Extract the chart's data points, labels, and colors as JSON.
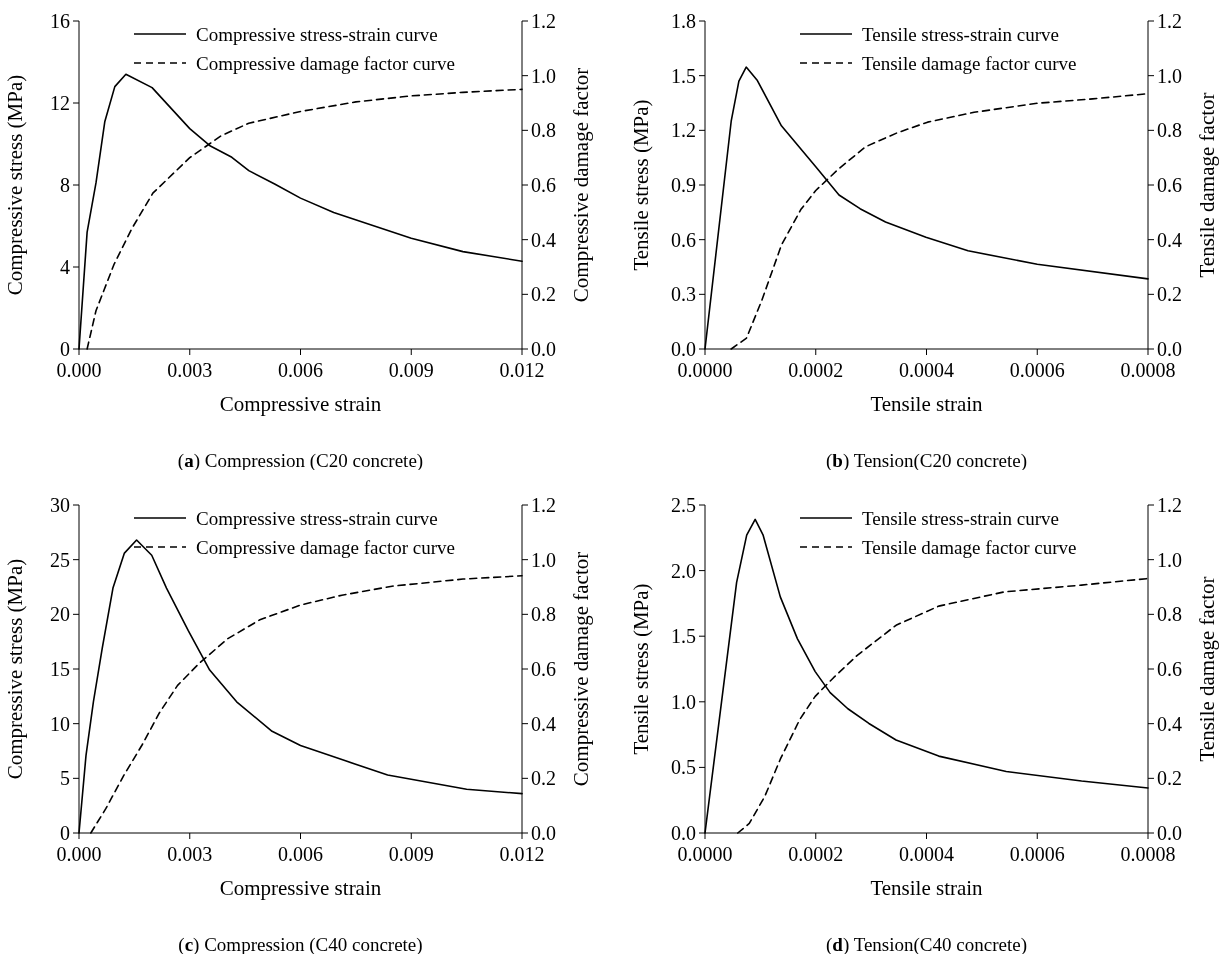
{
  "chart_data": [
    {
      "type": "line",
      "title": "(a) Compression (C20 concrete)",
      "xlabel": "Compressive strain",
      "ylabel": "Compressive stress (MPa)",
      "y2label": "Compressive damage factor",
      "legend": "top right",
      "xlim": [
        0,
        0.012
      ],
      "xticks": [
        {
          "value": 0,
          "label": "0.000"
        },
        {
          "value": 0.003,
          "label": "0.003"
        },
        {
          "value": 0.006,
          "label": "0.006"
        },
        {
          "value": 0.009,
          "label": "0.009"
        },
        {
          "value": 0.012,
          "label": "0.012"
        }
      ],
      "ylim": [
        0,
        16
      ],
      "yticks": [
        0,
        4,
        8,
        12,
        16
      ],
      "y2lim": [
        0,
        1.2
      ],
      "y2ticks": [
        {
          "value": 0,
          "label": "0.0"
        },
        {
          "value": 0.2,
          "label": "0.2"
        },
        {
          "value": 0.4,
          "label": "0.4"
        },
        {
          "value": 0.6,
          "label": "0.6"
        },
        {
          "value": 0.8,
          "label": "0.8"
        },
        {
          "value": 1,
          "label": "1.0"
        },
        {
          "value": 1.2,
          "label": "1.2"
        }
      ],
      "series": [
        {
          "name": "Compressive stress-strain curve",
          "color": "#000000",
          "line_style": "solid",
          "x": [
            0,
            0.00022,
            0.00046,
            0.0007,
            0.00097,
            0.00127,
            0.00198,
            0.003,
            0.00356,
            0.00414,
            0.0046,
            0.0053,
            0.006,
            0.0069,
            0.008,
            0.009,
            0.0104,
            0.012
          ],
          "values": [
            0,
            5.7,
            8.1,
            11.1,
            12.8,
            13.4,
            12.75,
            10.75,
            9.9,
            9.35,
            8.7,
            8.05,
            7.36,
            6.66,
            6.0,
            5.4,
            4.75,
            4.28
          ]
        },
        {
          "name": "Compressive damage factor curve",
          "color": "#000000",
          "line_style": "dashed",
          "axis": "y2",
          "x": [
            0.00022,
            0.00046,
            0.00095,
            0.00143,
            0.002,
            0.003,
            0.00385,
            0.0046,
            0.006,
            0.0075,
            0.009,
            0.0104,
            0.012
          ],
          "values": [
            0,
            0.14,
            0.31,
            0.44,
            0.57,
            0.7,
            0.78,
            0.826,
            0.869,
            0.904,
            0.926,
            0.939,
            0.95
          ]
        }
      ]
    },
    {
      "type": "line",
      "title": "(b) Tension(C20 concrete)",
      "xlabel": "Tensile strain",
      "ylabel": "Tensile stress (MPa)",
      "y2label": "Tensile damage factor",
      "legend": "top right",
      "xlim": [
        0,
        0.0008
      ],
      "xticks": [
        {
          "value": 0,
          "label": "0.0000"
        },
        {
          "value": 0.0002,
          "label": "0.0002"
        },
        {
          "value": 0.0004,
          "label": "0.0004"
        },
        {
          "value": 0.0006,
          "label": "0.0006"
        },
        {
          "value": 0.0008,
          "label": "0.0008"
        }
      ],
      "ylim": [
        0,
        1.8
      ],
      "yticks": [
        {
          "value": 0,
          "label": "0.0"
        },
        {
          "value": 0.3,
          "label": "0.3"
        },
        {
          "value": 0.6,
          "label": "0.6"
        },
        {
          "value": 0.9,
          "label": "0.9"
        },
        {
          "value": 1.2,
          "label": "1.2"
        },
        {
          "value": 1.5,
          "label": "1.5"
        },
        {
          "value": 1.8,
          "label": "1.8"
        }
      ],
      "y2lim": [
        0,
        1.2
      ],
      "y2ticks": [
        {
          "value": 0,
          "label": "0.0"
        },
        {
          "value": 0.2,
          "label": "0.2"
        },
        {
          "value": 0.4,
          "label": "0.4"
        },
        {
          "value": 0.6,
          "label": "0.6"
        },
        {
          "value": 0.8,
          "label": "0.8"
        },
        {
          "value": 1,
          "label": "1.0"
        },
        {
          "value": 1.2,
          "label": "1.2"
        }
      ],
      "series": [
        {
          "name": "Tensile stress-strain curve",
          "color": "#000000",
          "line_style": "solid",
          "x": [
            0,
            4.73e-05,
            6.12e-05,
            7.44e-05,
            9.46e-05,
            0.000138,
            0.0002,
            0.000242,
            0.00028,
            0.000326,
            0.000399,
            0.000475,
            0.0006,
            0.0008
          ],
          "values": [
            0,
            1.25,
            1.47,
            1.547,
            1.473,
            1.225,
            1.0,
            0.845,
            0.77,
            0.697,
            0.613,
            0.539,
            0.465,
            0.385
          ]
        },
        {
          "name": "Tensile damage factor curve",
          "color": "#000000",
          "line_style": "dashed",
          "axis": "y2",
          "x": [
            4.73e-05,
            7.5e-05,
            0.000103,
            0.000138,
            0.000173,
            0.0002,
            0.000242,
            0.00029,
            0.000346,
            0.000402,
            0.000486,
            0.0006,
            0.0007,
            0.0008
          ],
          "values": [
            0,
            0.04,
            0.18,
            0.38,
            0.51,
            0.58,
            0.66,
            0.74,
            0.79,
            0.83,
            0.866,
            0.899,
            0.915,
            0.934
          ]
        }
      ]
    },
    {
      "type": "line",
      "title": "(c) Compression (C40 concrete)",
      "xlabel": "Compressive strain",
      "ylabel": "Compressive stress (MPa)",
      "y2label": "Compressive damage factor",
      "legend": "top right",
      "xlim": [
        0,
        0.012
      ],
      "xticks": [
        {
          "value": 0,
          "label": "0.000"
        },
        {
          "value": 0.003,
          "label": "0.003"
        },
        {
          "value": 0.006,
          "label": "0.006"
        },
        {
          "value": 0.009,
          "label": "0.009"
        },
        {
          "value": 0.012,
          "label": "0.012"
        }
      ],
      "ylim": [
        0,
        30
      ],
      "yticks": [
        0,
        5,
        10,
        15,
        20,
        25,
        30
      ],
      "y2lim": [
        0,
        1.2
      ],
      "y2ticks": [
        {
          "value": 0,
          "label": "0.0"
        },
        {
          "value": 0.2,
          "label": "0.2"
        },
        {
          "value": 0.4,
          "label": "0.4"
        },
        {
          "value": 0.6,
          "label": "0.6"
        },
        {
          "value": 0.8,
          "label": "0.8"
        },
        {
          "value": 1,
          "label": "1.0"
        },
        {
          "value": 1.2,
          "label": "1.2"
        }
      ],
      "series": [
        {
          "name": "Compressive stress-strain curve",
          "color": "#000000",
          "line_style": "solid",
          "x": [
            0,
            0.00019,
            0.00039,
            0.00063,
            0.00092,
            0.00123,
            0.00156,
            0.00197,
            0.00237,
            0.00296,
            0.00354,
            0.00427,
            0.00523,
            0.006,
            0.00722,
            0.00836,
            0.0105,
            0.012
          ],
          "values": [
            0,
            7.1,
            12.0,
            16.9,
            22.4,
            25.6,
            26.8,
            25.4,
            22.4,
            18.5,
            14.9,
            12.0,
            9.3,
            8.0,
            6.6,
            5.3,
            4.0,
            3.6
          ]
        },
        {
          "name": "Compressive damage factor curve",
          "color": "#000000",
          "line_style": "dashed",
          "axis": "y2",
          "x": [
            0.00032,
            0.00073,
            0.00121,
            0.0017,
            0.00218,
            0.00267,
            0.00325,
            0.00402,
            0.0049,
            0.006,
            0.00712,
            0.00848,
            0.0104,
            0.012
          ],
          "values": [
            0,
            0.09,
            0.21,
            0.32,
            0.44,
            0.54,
            0.62,
            0.71,
            0.78,
            0.834,
            0.87,
            0.903,
            0.929,
            0.941
          ]
        }
      ]
    },
    {
      "type": "line",
      "title": "(d) Tension(C40 concrete)",
      "xlabel": "Tensile strain",
      "ylabel": "Tensile stress (MPa)",
      "y2label": "Tensile damage factor",
      "legend": "top right",
      "xlim": [
        0,
        0.0008
      ],
      "xticks": [
        {
          "value": 0,
          "label": "0.0000"
        },
        {
          "value": 0.0002,
          "label": "0.0002"
        },
        {
          "value": 0.0004,
          "label": "0.0004"
        },
        {
          "value": 0.0006,
          "label": "0.0006"
        },
        {
          "value": 0.0008,
          "label": "0.0008"
        }
      ],
      "ylim": [
        0,
        2.5
      ],
      "yticks": [
        {
          "value": 0,
          "label": "0.0"
        },
        {
          "value": 0.5,
          "label": "0.5"
        },
        {
          "value": 1,
          "label": "1.0"
        },
        {
          "value": 1.5,
          "label": "1.5"
        },
        {
          "value": 2,
          "label": "2.0"
        },
        {
          "value": 2.5,
          "label": "2.5"
        }
      ],
      "y2lim": [
        0,
        1.2
      ],
      "y2ticks": [
        {
          "value": 0,
          "label": "0.0"
        },
        {
          "value": 0.2,
          "label": "0.2"
        },
        {
          "value": 0.4,
          "label": "0.4"
        },
        {
          "value": 0.6,
          "label": "0.6"
        },
        {
          "value": 0.8,
          "label": "0.8"
        },
        {
          "value": 1,
          "label": "1.0"
        },
        {
          "value": 1.2,
          "label": "1.2"
        }
      ],
      "series": [
        {
          "name": "Tensile stress-strain curve",
          "color": "#000000",
          "line_style": "solid",
          "x": [
            0,
            5.71e-05,
            7.53e-05,
            9.06e-05,
            0.000105,
            0.000136,
            0.000167,
            0.000199,
            0.000226,
            0.000258,
            0.000296,
            0.000345,
            0.000422,
            0.000544,
            0.00068,
            0.0008
          ],
          "values": [
            0,
            1.91,
            2.27,
            2.39,
            2.27,
            1.8,
            1.48,
            1.23,
            1.07,
            0.947,
            0.835,
            0.709,
            0.586,
            0.469,
            0.396,
            0.343
          ]
        },
        {
          "name": "Tensile damage factor curve",
          "color": "#000000",
          "line_style": "dashed",
          "axis": "y2",
          "x": [
            5.92e-05,
            8e-05,
            0.000108,
            0.000136,
            0.000171,
            0.000199,
            0.000233,
            0.000275,
            0.000345,
            0.000422,
            0.00054,
            0.00068,
            0.0008
          ],
          "values": [
            0,
            0.035,
            0.134,
            0.27,
            0.415,
            0.5,
            0.57,
            0.65,
            0.76,
            0.83,
            0.882,
            0.907,
            0.931
          ]
        }
      ]
    }
  ]
}
